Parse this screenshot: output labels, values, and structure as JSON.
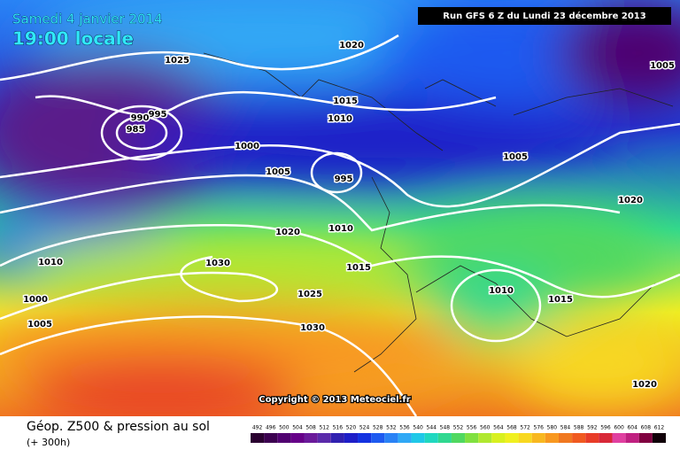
{
  "header": {
    "date": "Samedi 4 janvier 2014",
    "time": "19:00 locale",
    "run": "Run GFS 6 Z du Lundi 23 décembre 2013"
  },
  "copyright": "Copyright © 2013 Meteociel.fr",
  "footer": {
    "title": "Géop. Z500 & pression au sol",
    "lead": "(+ 300h)"
  },
  "isobar_labels": [
    "1025",
    "1020",
    "1005",
    "995",
    "990",
    "985",
    "1015",
    "1010",
    "1000",
    "1005",
    "995",
    "1005",
    "1020",
    "1020",
    "1010",
    "1010",
    "1030",
    "1015",
    "1000",
    "1010",
    "1015",
    "1025",
    "1005",
    "1030",
    "1020"
  ],
  "legend": {
    "labels": [
      "492",
      "496",
      "500",
      "504",
      "508",
      "512",
      "516",
      "520",
      "524",
      "528",
      "532",
      "536",
      "540",
      "544",
      "548",
      "552",
      "556",
      "560",
      "564",
      "568",
      "572",
      "576",
      "580",
      "584",
      "588",
      "592",
      "596",
      "600",
      "604",
      "608",
      "612"
    ],
    "colors": [
      "#2a0030",
      "#3c0050",
      "#500070",
      "#660088",
      "#6a1a9a",
      "#5a2aaa",
      "#3020b0",
      "#1e1ec8",
      "#1432e0",
      "#1e5af0",
      "#2a82f5",
      "#30a8f5",
      "#20c8e8",
      "#20d8c0",
      "#30d890",
      "#50d860",
      "#80e040",
      "#b0e830",
      "#d8f020",
      "#f0f020",
      "#f8d820",
      "#f8b820",
      "#f89820",
      "#f07820",
      "#f05a20",
      "#e83c28",
      "#d82838",
      "#e040a0",
      "#c02080",
      "#800040",
      "#100008"
    ]
  }
}
